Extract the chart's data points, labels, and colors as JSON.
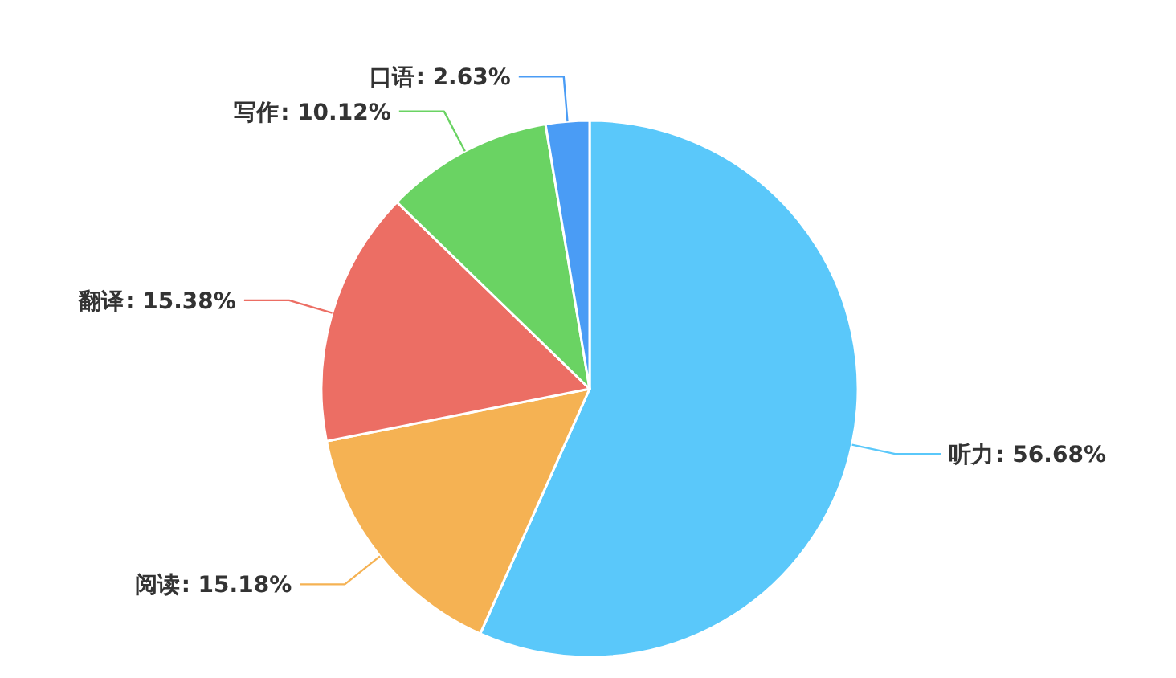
{
  "chart_data": {
    "type": "pie",
    "categories": [
      "听力",
      "阅读",
      "翻译",
      "写作",
      "口语"
    ],
    "values": [
      56.68,
      15.18,
      15.38,
      10.12,
      2.63
    ],
    "value_labels": [
      ": 56.68%",
      ": 15.18%",
      ": 15.38%",
      ": 10.12%",
      ": 2.63%"
    ],
    "colors": [
      "#5ac8fa",
      "#f5b253",
      "#ec6e64",
      "#6ad363",
      "#4a9cf5"
    ]
  }
}
